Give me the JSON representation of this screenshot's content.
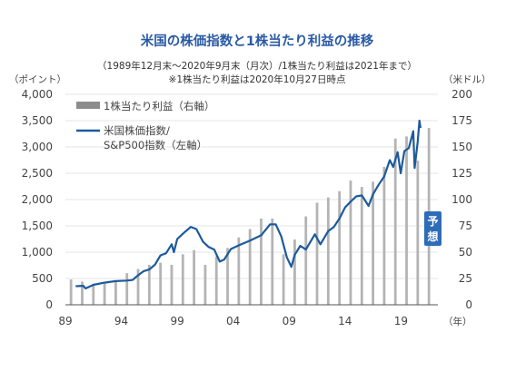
{
  "chart_data": {
    "type": "bar+line",
    "title": "米国の株価指数と1株当たり利益の推移",
    "subtitle_1": "（1989年12月末～2020年9月末（月次）/1株当たり利益は2021年まで）",
    "subtitle_2": "※1株当たり利益は2020年10月27日時点",
    "y_left_unit": "（ポイント）",
    "y_right_unit": "（米ドル）",
    "x_unit": "（年）",
    "y_left_ticks": [
      "0",
      "500",
      "1,000",
      "1,500",
      "2,000",
      "2,500",
      "3,000",
      "3,500",
      "4,000"
    ],
    "y_right_ticks": [
      "0",
      "25",
      "50",
      "75",
      "100",
      "125",
      "150",
      "175",
      "200"
    ],
    "x_ticks": [
      "89",
      "94",
      "99",
      "04",
      "09",
      "14",
      "19"
    ],
    "ylim_left": [
      0,
      4000
    ],
    "ylim_right": [
      0,
      200
    ],
    "xlim": [
      1989,
      2022.3
    ],
    "forecast_label": "予想",
    "legend": {
      "eps_label": "1株当たり利益（右軸）",
      "index_label_line1": "米国株価指数/",
      "index_label_line2": "S&P500指数（左軸）"
    },
    "colors": {
      "line": "#1c5a9c",
      "bars": "#b4b4b4",
      "legend_bar": "#8c8c8c",
      "forecast_box": "#2e6cb8",
      "title": "#2a5aa5"
    },
    "eps_series": {
      "x": [
        1989,
        1990,
        1991,
        1992,
        1993,
        1994,
        1995,
        1996,
        1997,
        1998,
        1999,
        2000,
        2001,
        2002,
        2003,
        2004,
        2005,
        2006,
        2007,
        2008,
        2009,
        2010,
        2011,
        2012,
        2013,
        2014,
        2015,
        2016,
        2017,
        2018,
        2019,
        2020,
        2021
      ],
      "values": [
        24,
        22,
        20,
        20,
        22,
        30,
        34,
        38,
        40,
        38,
        48,
        52,
        38,
        46,
        54,
        64,
        72,
        82,
        82,
        48,
        62,
        84,
        97,
        102,
        108,
        118,
        112,
        117,
        131,
        158,
        160,
        137,
        168
      ]
    },
    "index_series": {
      "x": [
        1989.92,
        1990.6,
        1990.8,
        1991.5,
        1992.5,
        1993.5,
        1994.5,
        1995.0,
        1995.5,
        1996.0,
        1996.5,
        1997.0,
        1997.5,
        1998.0,
        1998.5,
        1998.7,
        1999.0,
        1999.5,
        2000.2,
        2000.7,
        2001.3,
        2001.8,
        2002.3,
        2002.8,
        2003.2,
        2003.8,
        2004.5,
        2005.5,
        2006.5,
        2007.3,
        2007.8,
        2008.3,
        2008.8,
        2009.2,
        2009.5,
        2010.0,
        2010.5,
        2011.3,
        2011.8,
        2012.5,
        2013.0,
        2013.5,
        2014.0,
        2014.5,
        2015.0,
        2015.5,
        2016.1,
        2016.5,
        2017.0,
        2017.5,
        2018.0,
        2018.3,
        2018.7,
        2018.98,
        2019.3,
        2019.7,
        2020.1,
        2020.22,
        2020.5,
        2020.65,
        2020.75
      ],
      "values": [
        353,
        360,
        310,
        380,
        420,
        450,
        460,
        470,
        560,
        640,
        670,
        760,
        940,
        980,
        1150,
        1000,
        1250,
        1350,
        1480,
        1440,
        1200,
        1100,
        1050,
        820,
        860,
        1060,
        1130,
        1220,
        1320,
        1530,
        1530,
        1300,
        900,
        720,
        950,
        1120,
        1050,
        1340,
        1150,
        1400,
        1480,
        1640,
        1850,
        1960,
        2060,
        2080,
        1880,
        2100,
        2280,
        2440,
        2750,
        2620,
        2900,
        2500,
        2920,
        2980,
        3300,
        2600,
        3100,
        3500,
        3360
      ]
    }
  }
}
